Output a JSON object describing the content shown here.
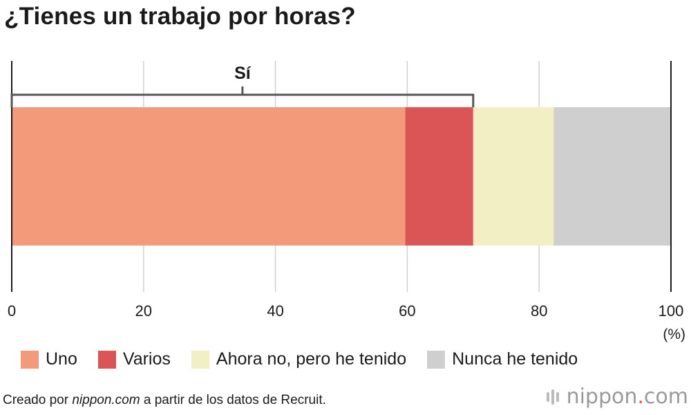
{
  "title": "¿Tienes un trabajo por horas?",
  "chart_data": {
    "type": "bar",
    "orientation": "horizontal-stacked",
    "title": "¿Tienes un trabajo por horas?",
    "xlabel": "",
    "unit_label": "(%)",
    "xlim": [
      0,
      100
    ],
    "ticks": [
      0,
      20,
      40,
      60,
      80,
      100
    ],
    "tick_labels": [
      "0",
      "20",
      "40",
      "60",
      "80",
      "100"
    ],
    "grid": true,
    "series": [
      {
        "name": "Uno",
        "value": 59.7,
        "color": "#f29a7a"
      },
      {
        "name": "Varios",
        "value": 10.3,
        "color": "#db5557"
      },
      {
        "name": "Ahora no, pero he tenido",
        "value": 12.2,
        "color": "#f3efc4"
      },
      {
        "name": "Nunca he tenido",
        "value": 17.8,
        "color": "#cfcfcf"
      }
    ],
    "bracket": {
      "label": "Sí",
      "from": 0,
      "to": 70
    }
  },
  "footer": {
    "prefix": "Creado por ",
    "site": "nippon.com",
    "suffix": " a partir de los datos de Recruit."
  },
  "logo": {
    "name": "nippon",
    "dot": ".",
    "tld": "com"
  }
}
